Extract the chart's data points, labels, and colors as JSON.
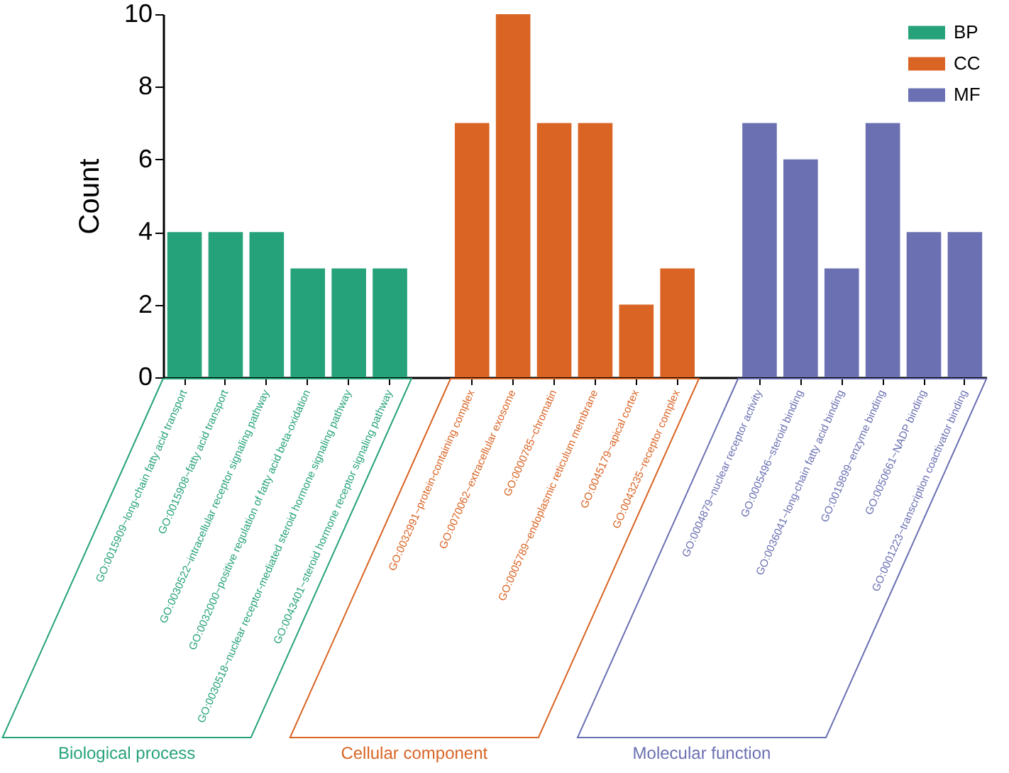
{
  "chart_data": {
    "type": "bar",
    "ylabel": "Count",
    "categories": [
      "GO:0015909~long-chain fatty acid transport",
      "GO:0015908~fatty acid transport",
      "GO:0030522~intracellular receptor signaling pathway",
      "GO:0032000~positive regulation of fatty acid beta-oxidation",
      "GO:0030518~nuclear receptor-mediated steroid hormone signaling pathway",
      "GO:0043401~steroid hormone receptor signaling pathway",
      "GO:0032991~protein-containing complex",
      "GO:0070062~extracellular exosome",
      "GO:0000785~chromatin",
      "GO:0005789~endoplasmic reticulum membrane",
      "GO:0045179~apical cortex",
      "GO:0043235~receptor complex",
      "GO:0004879~nuclear receptor activity",
      "GO:0005496~steroid binding",
      "GO:0036041~long-chain fatty acid binding",
      "GO:0019899~enzyme binding",
      "GO:0050661~NADP binding",
      "GO:0001223~transcription coactivator binding"
    ],
    "series": [
      {
        "name": "BP",
        "color": "#26a27b",
        "values": [
          4,
          4,
          4,
          3,
          3,
          3,
          null,
          null,
          null,
          null,
          null,
          null,
          null,
          null,
          null,
          null,
          null,
          null
        ]
      },
      {
        "name": "CC",
        "color": "#d96424",
        "values": [
          null,
          null,
          null,
          null,
          null,
          null,
          7,
          10,
          7,
          7,
          2,
          3,
          null,
          null,
          null,
          null,
          null,
          null
        ]
      },
      {
        "name": "MF",
        "color": "#6b70b2",
        "values": [
          null,
          null,
          null,
          null,
          null,
          null,
          null,
          null,
          null,
          null,
          null,
          null,
          7,
          6,
          3,
          7,
          4,
          4
        ]
      }
    ],
    "annotations": [
      "Biological process",
      "Cellular component",
      "Molecular function"
    ],
    "ylim": [
      0,
      10
    ],
    "yticks": [
      0,
      2,
      4,
      6,
      8,
      10
    ],
    "grid": false,
    "legend": "top right"
  }
}
